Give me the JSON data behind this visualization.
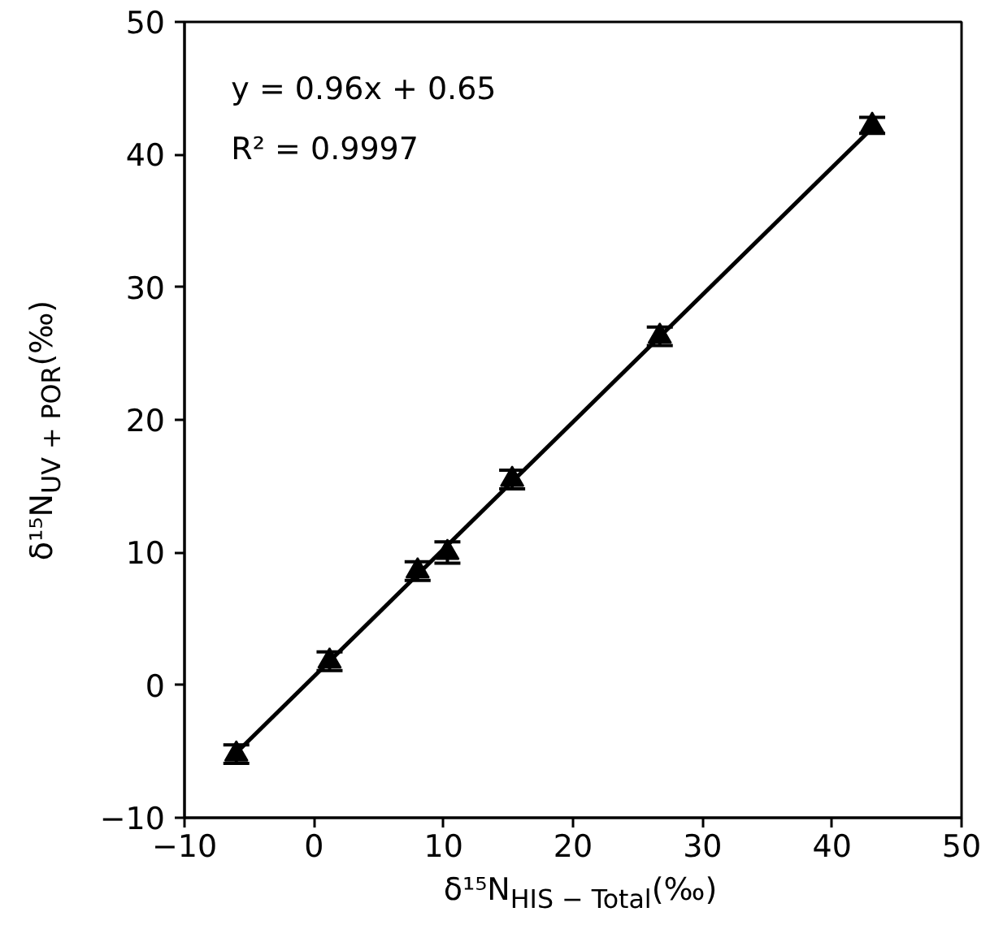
{
  "chart_data": {
    "type": "scatter",
    "xlabel": "δ¹⁵N$_{HIS − Total}$(‰)",
    "ylabel": "δ¹⁵N$_{UV + POR}$(‰)",
    "annotations": [
      "y = 0.96x + 0.65",
      "R² = 0.9997"
    ],
    "x": [
      -6.0,
      1.2,
      8.0,
      10.3,
      15.3,
      26.7,
      43.1
    ],
    "series": [
      {
        "color": "#000000",
        "marker": "triangle",
        "values": [
          -5.2,
          1.8,
          8.6,
          10.0,
          15.5,
          26.3,
          42.2
        ],
        "errors": [
          0.7,
          0.7,
          0.7,
          0.8,
          0.7,
          0.7,
          0.6
        ]
      },
      {
        "type": "line",
        "color": "#000000",
        "x": [
          -6.0,
          43.1
        ],
        "values": [
          -5.1,
          42.0
        ],
        "line_style": "solid",
        "marker": "none"
      }
    ],
    "xlim": [
      -10,
      50
    ],
    "ylim": [
      -10,
      50
    ],
    "xticks": [
      -10,
      0,
      10,
      20,
      30,
      40,
      50
    ],
    "yticks": [
      -10,
      0,
      10,
      20,
      30,
      40,
      50
    ],
    "grid": false
  }
}
